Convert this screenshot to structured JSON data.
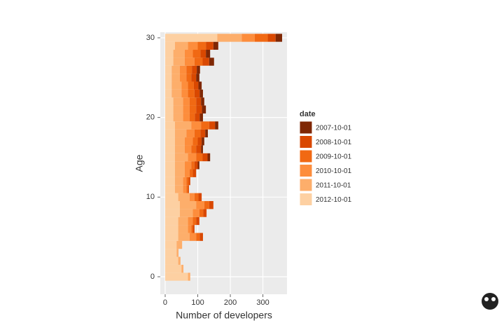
{
  "chart_data": {
    "type": "stacked-barh",
    "x_label": "Number of developers",
    "y_label": "Age",
    "legend_title": "date",
    "y": [
      0,
      1,
      2,
      3,
      4,
      5,
      6,
      7,
      8,
      9,
      10,
      11,
      12,
      13,
      14,
      15,
      16,
      17,
      18,
      19,
      20,
      21,
      22,
      23,
      24,
      25,
      26,
      27,
      28,
      29,
      30
    ],
    "series": [
      {
        "name": "2007-10-01",
        "color": "#7f2704",
        "values": [
          0,
          0,
          0,
          0,
          0,
          0,
          0,
          0,
          0,
          0,
          0,
          0,
          0,
          0,
          5,
          8,
          6,
          8,
          8,
          10,
          10,
          12,
          10,
          10,
          10,
          10,
          10,
          15,
          13,
          15,
          20
        ]
      },
      {
        "name": "2008-10-01",
        "color": "#d94801",
        "values": [
          0,
          0,
          0,
          0,
          0,
          10,
          5,
          10,
          10,
          13,
          10,
          3,
          5,
          10,
          10,
          15,
          15,
          12,
          15,
          18,
          15,
          18,
          15,
          16,
          14,
          15,
          15,
          20,
          17,
          23,
          24
        ]
      },
      {
        "name": "2009-10-01",
        "color": "#f16913",
        "values": [
          0,
          0,
          0,
          0,
          0,
          11,
          5,
          10,
          12,
          15,
          12,
          5,
          7,
          10,
          10,
          20,
          15,
          15,
          18,
          25,
          16,
          20,
          20,
          20,
          18,
          15,
          17,
          25,
          23,
          25,
          40
        ]
      },
      {
        "name": "2010-10-01",
        "color": "#fd8d3c",
        "values": [
          0,
          0,
          0,
          0,
          0,
          20,
          10,
          15,
          20,
          25,
          15,
          10,
          10,
          15,
          20,
          25,
          20,
          25,
          25,
          30,
          20,
          20,
          20,
          20,
          20,
          20,
          20,
          30,
          25,
          30,
          40
        ]
      },
      {
        "name": "2011-10-01",
        "color": "#fdae6b",
        "values": [
          7,
          6,
          7,
          6,
          17,
          35,
          30,
          30,
          40,
          50,
          35,
          25,
          25,
          30,
          30,
          40,
          30,
          30,
          35,
          50,
          30,
          30,
          30,
          30,
          30,
          25,
          25,
          35,
          35,
          40,
          75
        ]
      },
      {
        "name": "2012-10-01",
        "color": "#fdd0a2",
        "values": [
          70,
          50,
          40,
          35,
          35,
          40,
          40,
          40,
          45,
          45,
          40,
          30,
          30,
          30,
          30,
          30,
          30,
          30,
          30,
          30,
          25,
          25,
          25,
          20,
          20,
          20,
          20,
          25,
          25,
          30,
          160
        ]
      }
    ],
    "xlim": [
      -15,
      374
    ],
    "xticks": [
      0,
      100,
      200,
      300
    ],
    "ylim": [
      -2.2,
      30.7
    ],
    "yticks": [
      0,
      10,
      20,
      30
    ],
    "grid": true
  }
}
